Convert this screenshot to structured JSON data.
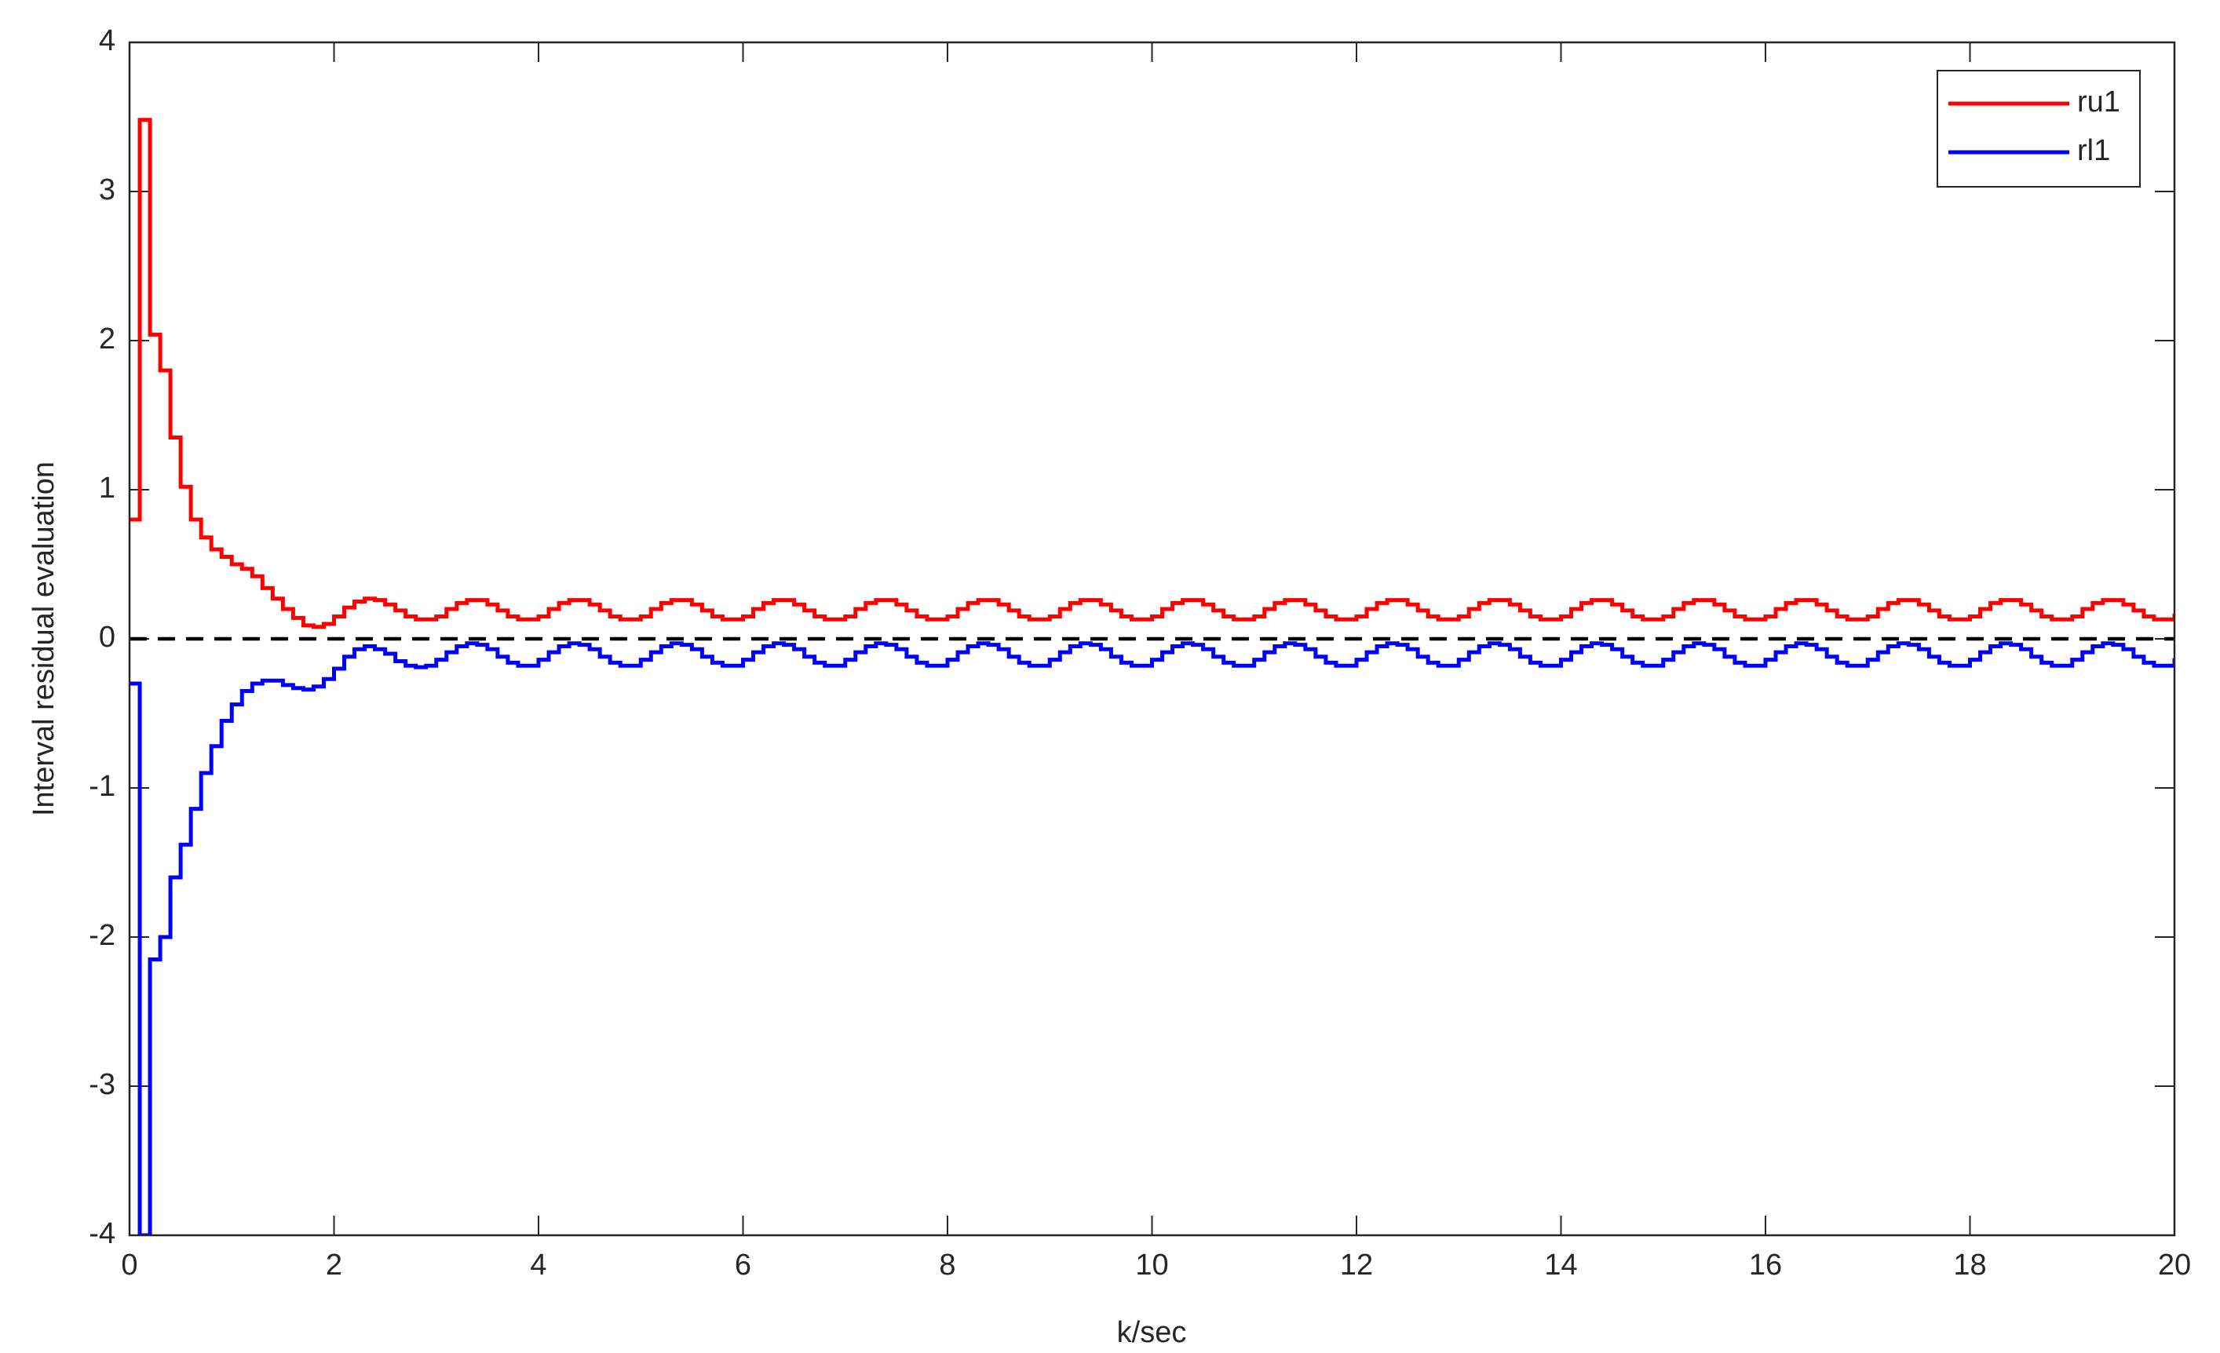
{
  "chart_data": {
    "type": "stairs",
    "xlabel": "k/sec",
    "ylabel": "Interval residual evaluation",
    "xlim": [
      0,
      20
    ],
    "ylim": [
      -4,
      4
    ],
    "xticks": [
      0,
      2,
      4,
      6,
      8,
      10,
      12,
      14,
      16,
      18,
      20
    ],
    "yticks": [
      -4,
      -3,
      -2,
      -1,
      0,
      1,
      2,
      3,
      4
    ],
    "legend": "top-right",
    "grid": false,
    "hline": {
      "y": 0,
      "color": "#000000",
      "style": "dashed"
    },
    "x": [
      0,
      0.1,
      0.2,
      0.3,
      0.4,
      0.5,
      0.6,
      0.7,
      0.8,
      0.9,
      1,
      1.1,
      1.2,
      1.3,
      1.4,
      1.5,
      1.6,
      1.7,
      1.8,
      1.9,
      2,
      2.1,
      2.2,
      2.3,
      2.4,
      2.5,
      2.6,
      2.7,
      2.8,
      2.9,
      3,
      3.1,
      3.2,
      3.3,
      3.4,
      3.5,
      3.6,
      3.7,
      3.8,
      3.9,
      4,
      4.1,
      4.2,
      4.3,
      4.4,
      4.5,
      4.6,
      4.7,
      4.8,
      4.9,
      5,
      5.1,
      5.2,
      5.3,
      5.4,
      5.5,
      5.6,
      5.7,
      5.8,
      5.9,
      6,
      6.1,
      6.2,
      6.3,
      6.4,
      6.5,
      6.6,
      6.7,
      6.8,
      6.9,
      7,
      7.1,
      7.2,
      7.3,
      7.4,
      7.5,
      7.6,
      7.7,
      7.8,
      7.9,
      8,
      8.1,
      8.2,
      8.3,
      8.4,
      8.5,
      8.6,
      8.7,
      8.8,
      8.9,
      9,
      9.1,
      9.2,
      9.3,
      9.4,
      9.5,
      9.6,
      9.7,
      9.8,
      9.9,
      10,
      10.1,
      10.2,
      10.3,
      10.4,
      10.5,
      10.6,
      10.7,
      10.8,
      10.9,
      11,
      11.1,
      11.2,
      11.3,
      11.4,
      11.5,
      11.6,
      11.7,
      11.8,
      11.9,
      12,
      12.1,
      12.2,
      12.3,
      12.4,
      12.5,
      12.6,
      12.7,
      12.8,
      12.9,
      13,
      13.1,
      13.2,
      13.3,
      13.4,
      13.5,
      13.6,
      13.7,
      13.8,
      13.9,
      14,
      14.1,
      14.2,
      14.3,
      14.4,
      14.5,
      14.6,
      14.7,
      14.8,
      14.9,
      15,
      15.1,
      15.2,
      15.3,
      15.4,
      15.5,
      15.6,
      15.7,
      15.8,
      15.9,
      16,
      16.1,
      16.2,
      16.3,
      16.4,
      16.5,
      16.6,
      16.7,
      16.8,
      16.9,
      17,
      17.1,
      17.2,
      17.3,
      17.4,
      17.5,
      17.6,
      17.7,
      17.8,
      17.9,
      18,
      18.1,
      18.2,
      18.3,
      18.4,
      18.5,
      18.6,
      18.7,
      18.8,
      18.9,
      19,
      19.1,
      19.2,
      19.3,
      19.4,
      19.5,
      19.6,
      19.7,
      19.8,
      19.9,
      20
    ],
    "series": [
      {
        "name": "ru1",
        "color": "#ff0000",
        "values": [
          0.8,
          3.48,
          2.04,
          1.8,
          1.35,
          1.02,
          0.8,
          0.68,
          0.6,
          0.55,
          0.5,
          0.47,
          0.42,
          0.34,
          0.27,
          0.2,
          0.14,
          0.09,
          0.08,
          0.1,
          0.15,
          0.21,
          0.25,
          0.27,
          0.26,
          0.23,
          0.19,
          0.15,
          0.13,
          0.13,
          0.15,
          0.2,
          0.24,
          0.26,
          0.26,
          0.23,
          0.19,
          0.15,
          0.13,
          0.13,
          0.15,
          0.2,
          0.24,
          0.26,
          0.26,
          0.23,
          0.19,
          0.15,
          0.13,
          0.13,
          0.15,
          0.2,
          0.24,
          0.26,
          0.26,
          0.23,
          0.19,
          0.15,
          0.13,
          0.13,
          0.15,
          0.2,
          0.24,
          0.26,
          0.26,
          0.23,
          0.19,
          0.15,
          0.13,
          0.13,
          0.15,
          0.2,
          0.24,
          0.26,
          0.26,
          0.23,
          0.19,
          0.15,
          0.13,
          0.13,
          0.15,
          0.2,
          0.24,
          0.26,
          0.26,
          0.23,
          0.19,
          0.15,
          0.13,
          0.13,
          0.15,
          0.2,
          0.24,
          0.26,
          0.26,
          0.23,
          0.19,
          0.15,
          0.13,
          0.13,
          0.15,
          0.2,
          0.24,
          0.26,
          0.26,
          0.23,
          0.19,
          0.15,
          0.13,
          0.13,
          0.15,
          0.2,
          0.24,
          0.26,
          0.26,
          0.23,
          0.19,
          0.15,
          0.13,
          0.13,
          0.15,
          0.2,
          0.24,
          0.26,
          0.26,
          0.23,
          0.19,
          0.15,
          0.13,
          0.13,
          0.15,
          0.2,
          0.24,
          0.26,
          0.26,
          0.23,
          0.19,
          0.15,
          0.13,
          0.13,
          0.15,
          0.2,
          0.24,
          0.26,
          0.26,
          0.23,
          0.19,
          0.15,
          0.13,
          0.13,
          0.15,
          0.2,
          0.24,
          0.26,
          0.26,
          0.23,
          0.19,
          0.15,
          0.13,
          0.13,
          0.15,
          0.2,
          0.24,
          0.26,
          0.26,
          0.23,
          0.19,
          0.15,
          0.13,
          0.13,
          0.15,
          0.2,
          0.24,
          0.26,
          0.26,
          0.23,
          0.19,
          0.15,
          0.13,
          0.13,
          0.15,
          0.2,
          0.24,
          0.26,
          0.26,
          0.23,
          0.19,
          0.15,
          0.13,
          0.13,
          0.15,
          0.2,
          0.24,
          0.26,
          0.26,
          0.23,
          0.19,
          0.15,
          0.13,
          0.13,
          0.17
        ]
      },
      {
        "name": "rl1",
        "color": "#0000ff",
        "values": [
          -0.3,
          -4.0,
          -2.15,
          -2.0,
          -1.6,
          -1.38,
          -1.14,
          -0.9,
          -0.72,
          -0.55,
          -0.44,
          -0.35,
          -0.3,
          -0.28,
          -0.28,
          -0.31,
          -0.33,
          -0.34,
          -0.32,
          -0.27,
          -0.2,
          -0.12,
          -0.07,
          -0.05,
          -0.07,
          -0.1,
          -0.15,
          -0.18,
          -0.19,
          -0.18,
          -0.14,
          -0.09,
          -0.05,
          -0.03,
          -0.04,
          -0.07,
          -0.12,
          -0.16,
          -0.18,
          -0.18,
          -0.14,
          -0.09,
          -0.05,
          -0.03,
          -0.04,
          -0.07,
          -0.12,
          -0.16,
          -0.18,
          -0.18,
          -0.14,
          -0.09,
          -0.05,
          -0.03,
          -0.04,
          -0.07,
          -0.12,
          -0.16,
          -0.18,
          -0.18,
          -0.14,
          -0.09,
          -0.05,
          -0.03,
          -0.04,
          -0.07,
          -0.12,
          -0.16,
          -0.18,
          -0.18,
          -0.14,
          -0.09,
          -0.05,
          -0.03,
          -0.04,
          -0.07,
          -0.12,
          -0.16,
          -0.18,
          -0.18,
          -0.14,
          -0.09,
          -0.05,
          -0.03,
          -0.04,
          -0.07,
          -0.12,
          -0.16,
          -0.18,
          -0.18,
          -0.14,
          -0.09,
          -0.05,
          -0.03,
          -0.04,
          -0.07,
          -0.12,
          -0.16,
          -0.18,
          -0.18,
          -0.14,
          -0.09,
          -0.05,
          -0.03,
          -0.04,
          -0.07,
          -0.12,
          -0.16,
          -0.18,
          -0.18,
          -0.14,
          -0.09,
          -0.05,
          -0.03,
          -0.04,
          -0.07,
          -0.12,
          -0.16,
          -0.18,
          -0.18,
          -0.14,
          -0.09,
          -0.05,
          -0.03,
          -0.04,
          -0.07,
          -0.12,
          -0.16,
          -0.18,
          -0.18,
          -0.14,
          -0.09,
          -0.05,
          -0.03,
          -0.04,
          -0.07,
          -0.12,
          -0.16,
          -0.18,
          -0.18,
          -0.14,
          -0.09,
          -0.05,
          -0.03,
          -0.04,
          -0.07,
          -0.12,
          -0.16,
          -0.18,
          -0.18,
          -0.14,
          -0.09,
          -0.05,
          -0.03,
          -0.04,
          -0.07,
          -0.12,
          -0.16,
          -0.18,
          -0.18,
          -0.14,
          -0.09,
          -0.05,
          -0.03,
          -0.04,
          -0.07,
          -0.12,
          -0.16,
          -0.18,
          -0.18,
          -0.14,
          -0.09,
          -0.05,
          -0.03,
          -0.04,
          -0.07,
          -0.12,
          -0.16,
          -0.18,
          -0.18,
          -0.14,
          -0.09,
          -0.05,
          -0.03,
          -0.04,
          -0.07,
          -0.12,
          -0.16,
          -0.18,
          -0.18,
          -0.14,
          -0.09,
          -0.05,
          -0.03,
          -0.04,
          -0.07,
          -0.12,
          -0.16,
          -0.18,
          -0.18,
          -0.13
        ]
      }
    ]
  }
}
